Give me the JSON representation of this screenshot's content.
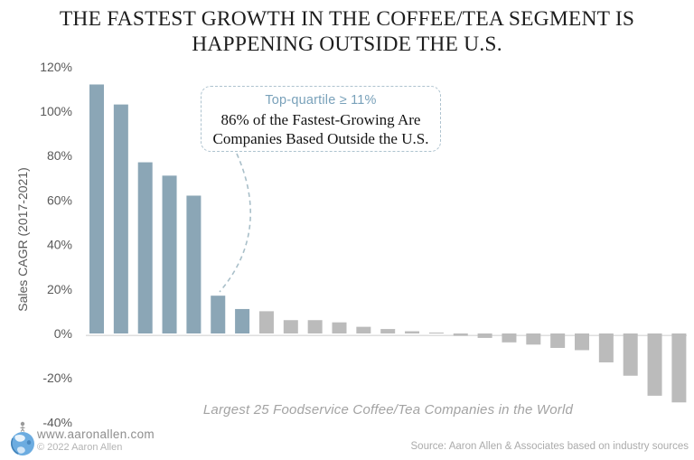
{
  "title": {
    "line1": "THE FASTEST GROWTH IN THE COFFEE/TEA SEGMENT IS",
    "line2": "HAPPENING OUTSIDE THE U.S."
  },
  "chart_data": {
    "type": "bar",
    "title": "The fastest growth in the coffee/tea segment is happening outside the U.S.",
    "xlabel": "Largest 25 Foodservice Coffee/Tea Companies in the World",
    "ylabel": "Sales CAGR (2017-2021)",
    "ylim": [
      -40,
      120
    ],
    "yticks": [
      120,
      100,
      80,
      60,
      40,
      20,
      0,
      -20,
      -40
    ],
    "ytick_suffix": "%",
    "grid": false,
    "legend_position": "none",
    "values": [
      112,
      103,
      77,
      71,
      62,
      17,
      11,
      10,
      6,
      6,
      5,
      3,
      2,
      1,
      0.3,
      -1,
      -2,
      -4,
      -5,
      -6.5,
      -7.5,
      -13,
      -19,
      -28,
      -31
    ],
    "highlight_first_n": 7,
    "colors": {
      "highlight": "#8ba6b6",
      "default": "#bbbbbb",
      "axis_line": "#dedede",
      "tick_text": "#5a5a5a"
    }
  },
  "annotation": {
    "header": "Top-quartile ≥ 11%",
    "line1": "86% of the Fastest-Growing Are",
    "line2": "Companies Based Outside the U.S."
  },
  "caption": "Largest 25 Foodservice Coffee/Tea Companies in the World",
  "footer": {
    "website": "www.aaronallen.com",
    "copyright": "© 2022 Aaron Allen",
    "source": "Source: Aaron Allen & Associates based on industry sources"
  }
}
